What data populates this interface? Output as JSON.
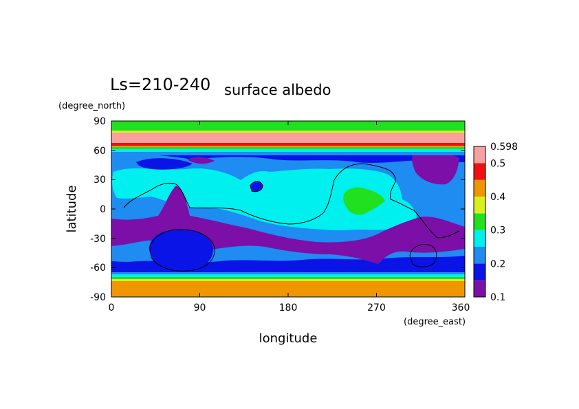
{
  "chart_data": {
    "type": "heatmap",
    "title": "surface albedo",
    "subtitle": "Ls=210-240",
    "xlabel": "longitude",
    "ylabel": "latitude",
    "xunit": "(degree_east)",
    "yunit": "(degree_north)",
    "xlim": [
      0,
      360
    ],
    "ylim": [
      -90,
      90
    ],
    "xticks": [
      "0",
      "90",
      "180",
      "270",
      "360"
    ],
    "yticks": [
      "90",
      "60",
      "30",
      "0",
      "-30",
      "-60",
      "-90"
    ],
    "colorbar": {
      "levels": [
        0.1,
        0.2,
        0.3,
        0.4,
        0.5,
        0.598
      ],
      "labels": [
        "0.1",
        "0.2",
        "0.3",
        "0.4",
        "0.5",
        "0.598"
      ],
      "colors": [
        "#7b0fa8",
        "#0a14e6",
        "#1e8cf0",
        "#00f0f0",
        "#20e020",
        "#d8f020",
        "#f09600",
        "#f01010",
        "#f8a0a0"
      ]
    },
    "bands": [
      {
        "lat_range": [
          80,
          90
        ],
        "color": "#20e020"
      },
      {
        "lat_range": [
          78,
          80
        ],
        "color": "#d8f020"
      },
      {
        "lat_range": [
          66,
          78
        ],
        "color": "#f8a0a0"
      },
      {
        "lat_range": [
          64,
          66
        ],
        "color": "#f01010"
      },
      {
        "lat_range": [
          -67,
          -69
        ],
        "color": "#00f0f0"
      },
      {
        "lat_range": [
          -69,
          -71
        ],
        "color": "#20e020"
      },
      {
        "lat_range": [
          -71,
          -72
        ],
        "color": "#d8f020"
      },
      {
        "lat_range": [
          -72,
          -90
        ],
        "color": "#f09600"
      }
    ],
    "grid": false
  }
}
